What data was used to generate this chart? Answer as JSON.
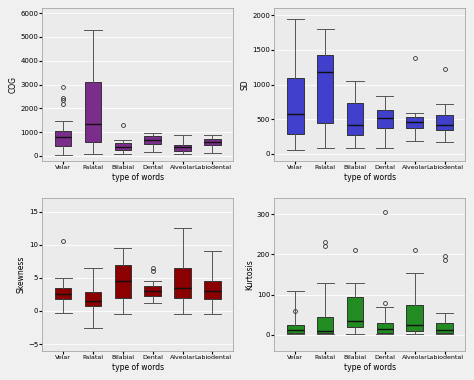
{
  "categories": [
    "Velar",
    "Palatal",
    "Bilabial",
    "Dental",
    "Alveolar",
    "Labiodental"
  ],
  "xlabel": "type of words",
  "fig_facecolor": "#f0f0f0",
  "ax_facecolor": "#ebebeb",
  "cog": {
    "ylabel": "COG",
    "color": "#7b2d8b",
    "ylim": [
      -200,
      6200
    ],
    "yticks": [
      0,
      1000,
      2000,
      3000,
      4000,
      5000,
      6000
    ],
    "boxes": [
      {
        "q1": 420,
        "med": 780,
        "q3": 1050,
        "whislo": 50,
        "whishi": 1450,
        "fliers": [
          2200,
          2350,
          2450,
          2900
        ]
      },
      {
        "q1": 580,
        "med": 1350,
        "q3": 3100,
        "whislo": 80,
        "whishi": 5300,
        "fliers": []
      },
      {
        "q1": 230,
        "med": 380,
        "q3": 530,
        "whislo": 80,
        "whishi": 680,
        "fliers": [
          1300
        ]
      },
      {
        "q1": 520,
        "med": 680,
        "q3": 840,
        "whislo": 180,
        "whishi": 980,
        "fliers": []
      },
      {
        "q1": 220,
        "med": 380,
        "q3": 480,
        "whislo": 80,
        "whishi": 880,
        "fliers": []
      },
      {
        "q1": 480,
        "med": 580,
        "q3": 720,
        "whislo": 120,
        "whishi": 880,
        "fliers": []
      }
    ]
  },
  "sd": {
    "ylabel": "SD",
    "color": "#4040cc",
    "ylim": [
      -100,
      2100
    ],
    "yticks": [
      0,
      500,
      1000,
      1500,
      2000
    ],
    "boxes": [
      {
        "q1": 280,
        "med": 580,
        "q3": 1100,
        "whislo": 50,
        "whishi": 1950,
        "fliers": []
      },
      {
        "q1": 440,
        "med": 1180,
        "q3": 1430,
        "whislo": 90,
        "whishi": 1800,
        "fliers": []
      },
      {
        "q1": 270,
        "med": 410,
        "q3": 740,
        "whislo": 90,
        "whishi": 1050,
        "fliers": []
      },
      {
        "q1": 370,
        "med": 510,
        "q3": 630,
        "whislo": 90,
        "whishi": 830,
        "fliers": []
      },
      {
        "q1": 370,
        "med": 460,
        "q3": 530,
        "whislo": 180,
        "whishi": 590,
        "fliers": [
          1380
        ]
      },
      {
        "q1": 350,
        "med": 410,
        "q3": 560,
        "whislo": 170,
        "whishi": 720,
        "fliers": [
          1220
        ]
      }
    ]
  },
  "skewness": {
    "ylabel": "Skewness",
    "color": "#8b0000",
    "ylim": [
      -6,
      17
    ],
    "yticks": [
      -5,
      0,
      5,
      10,
      15
    ],
    "boxes": [
      {
        "q1": 1.8,
        "med": 2.5,
        "q3": 3.5,
        "whislo": -0.3,
        "whishi": 5.0,
        "fliers": [
          10.5
        ]
      },
      {
        "q1": 0.8,
        "med": 1.5,
        "q3": 2.8,
        "whislo": -2.5,
        "whishi": 6.5,
        "fliers": []
      },
      {
        "q1": 2.0,
        "med": 4.5,
        "q3": 7.0,
        "whislo": -0.5,
        "whishi": 9.5,
        "fliers": []
      },
      {
        "q1": 2.2,
        "med": 3.0,
        "q3": 3.8,
        "whislo": 1.2,
        "whishi": 4.5,
        "fliers": [
          6.0,
          6.5
        ]
      },
      {
        "q1": 2.0,
        "med": 3.5,
        "q3": 6.5,
        "whislo": -0.5,
        "whishi": 12.5,
        "fliers": []
      },
      {
        "q1": 1.8,
        "med": 3.0,
        "q3": 4.5,
        "whislo": -0.5,
        "whishi": 9.0,
        "fliers": []
      }
    ]
  },
  "kurtosis": {
    "ylabel": "Kurtosis",
    "color": "#228b22",
    "ylim": [
      -40,
      340
    ],
    "yticks": [
      0,
      100,
      200,
      300
    ],
    "boxes": [
      {
        "q1": 5,
        "med": 12,
        "q3": 25,
        "whislo": 1,
        "whishi": 110,
        "fliers": [
          60
        ]
      },
      {
        "q1": 5,
        "med": 8,
        "q3": 45,
        "whislo": 1,
        "whishi": 130,
        "fliers": [
          230,
          220
        ]
      },
      {
        "q1": 18,
        "med": 35,
        "q3": 95,
        "whislo": 1,
        "whishi": 130,
        "fliers": [
          210
        ]
      },
      {
        "q1": 5,
        "med": 15,
        "q3": 30,
        "whislo": 1,
        "whishi": 70,
        "fliers": [
          80,
          305
        ]
      },
      {
        "q1": 10,
        "med": 25,
        "q3": 75,
        "whislo": 1,
        "whishi": 155,
        "fliers": [
          210
        ]
      },
      {
        "q1": 5,
        "med": 12,
        "q3": 28,
        "whislo": 1,
        "whishi": 55,
        "fliers": [
          185,
          195
        ]
      }
    ]
  }
}
